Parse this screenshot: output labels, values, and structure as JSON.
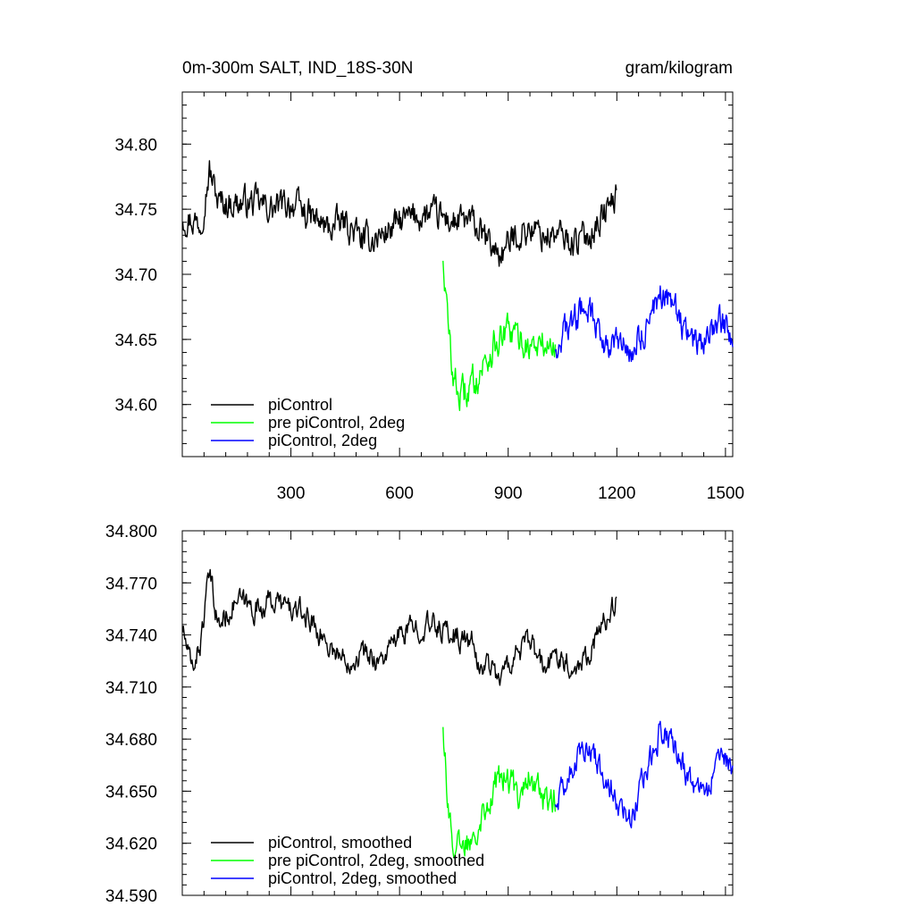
{
  "chart_data": [
    {
      "type": "line",
      "title_left": "0m-300m SALT, IND_18S-30N",
      "title_right": "gram/kilogram",
      "xlim": [
        0,
        1520
      ],
      "ylim": [
        34.56,
        34.84
      ],
      "xticks": [
        300,
        600,
        900,
        1200,
        1500
      ],
      "xtick_labels": [
        "300",
        "600",
        "900",
        "1200",
        "1500"
      ],
      "yticks": [
        34.6,
        34.65,
        34.7,
        34.75,
        34.8
      ],
      "ytick_labels": [
        "34.60",
        "34.65",
        "34.70",
        "34.75",
        "34.80"
      ],
      "legend_position": "bottom-left",
      "series": [
        {
          "name": "piControl",
          "color": "#000000",
          "x_range": [
            1,
            1200
          ],
          "anchors_x": [
            0,
            50,
            75,
            100,
            150,
            200,
            250,
            300,
            350,
            400,
            450,
            500,
            550,
            600,
            650,
            700,
            750,
            800,
            840,
            880,
            920,
            960,
            1000,
            1040,
            1080,
            1120,
            1160,
            1200
          ],
          "anchors_y": [
            34.745,
            34.74,
            34.78,
            34.755,
            34.755,
            34.755,
            34.75,
            34.755,
            34.745,
            34.735,
            34.74,
            34.725,
            34.73,
            34.74,
            34.745,
            34.745,
            34.74,
            34.74,
            34.725,
            34.715,
            34.73,
            34.735,
            34.73,
            34.73,
            34.725,
            34.73,
            34.745,
            34.76
          ],
          "noise": 0.012
        },
        {
          "name": "pre piControl, 2deg",
          "color": "#00ff00",
          "x_range": [
            720,
            1030
          ],
          "anchors_x": [
            720,
            735,
            750,
            770,
            800,
            830,
            860,
            880,
            900,
            930,
            960,
            1000,
            1030
          ],
          "anchors_y": [
            34.715,
            34.655,
            34.62,
            34.605,
            34.615,
            34.63,
            34.645,
            34.65,
            34.655,
            34.65,
            34.645,
            34.645,
            34.645
          ],
          "noise": 0.013
        },
        {
          "name": "piControl, 2deg",
          "color": "#0000ff",
          "x_range": [
            1030,
            1520
          ],
          "anchors_x": [
            1030,
            1080,
            1120,
            1160,
            1200,
            1240,
            1280,
            1320,
            1360,
            1400,
            1440,
            1480,
            1520
          ],
          "anchors_y": [
            34.645,
            34.665,
            34.675,
            34.65,
            34.645,
            34.64,
            34.66,
            34.685,
            34.675,
            34.65,
            34.645,
            34.665,
            34.655
          ],
          "noise": 0.012
        }
      ]
    },
    {
      "type": "line",
      "xlim": [
        0,
        1520
      ],
      "ylim": [
        34.59,
        34.8
      ],
      "xticks": [
        300,
        600,
        900,
        1200,
        1500
      ],
      "yticks": [
        34.59,
        34.62,
        34.65,
        34.68,
        34.71,
        34.74,
        34.77,
        34.8
      ],
      "ytick_labels": [
        "34.590",
        "34.620",
        "34.650",
        "34.680",
        "34.710",
        "34.740",
        "34.770",
        "34.800"
      ],
      "legend_position": "bottom-left",
      "series": [
        {
          "name": "piControl, smoothed",
          "color": "#000000",
          "x_range": [
            1,
            1200
          ],
          "anchors_x": [
            0,
            25,
            50,
            75,
            100,
            150,
            200,
            250,
            300,
            350,
            400,
            450,
            500,
            550,
            600,
            650,
            700,
            750,
            800,
            820,
            840,
            880,
            920,
            960,
            1000,
            1040,
            1080,
            1120,
            1160,
            1200
          ],
          "anchors_y": [
            34.745,
            34.72,
            34.735,
            34.775,
            34.745,
            34.76,
            34.755,
            34.76,
            34.755,
            34.75,
            34.735,
            34.725,
            34.73,
            34.725,
            34.74,
            34.745,
            34.745,
            34.74,
            34.735,
            34.72,
            34.725,
            34.715,
            34.73,
            34.735,
            34.72,
            34.73,
            34.72,
            34.73,
            34.745,
            34.76
          ],
          "noise": 0.007
        },
        {
          "name": "pre piControl, 2deg, smoothed",
          "color": "#00ff00",
          "x_range": [
            720,
            1030
          ],
          "anchors_x": [
            720,
            735,
            750,
            770,
            800,
            830,
            860,
            880,
            900,
            930,
            960,
            1000,
            1030
          ],
          "anchors_y": [
            34.69,
            34.64,
            34.62,
            34.615,
            34.625,
            34.64,
            34.65,
            34.66,
            34.655,
            34.65,
            34.66,
            34.645,
            34.645
          ],
          "noise": 0.009
        },
        {
          "name": "piControl, 2deg, smoothed",
          "color": "#0000ff",
          "x_range": [
            1030,
            1520
          ],
          "anchors_x": [
            1030,
            1080,
            1120,
            1160,
            1200,
            1240,
            1280,
            1320,
            1360,
            1400,
            1440,
            1480,
            1520
          ],
          "anchors_y": [
            34.645,
            34.665,
            34.68,
            34.66,
            34.645,
            34.635,
            34.66,
            34.685,
            34.675,
            34.655,
            34.645,
            34.665,
            34.665
          ],
          "noise": 0.008
        }
      ]
    }
  ]
}
